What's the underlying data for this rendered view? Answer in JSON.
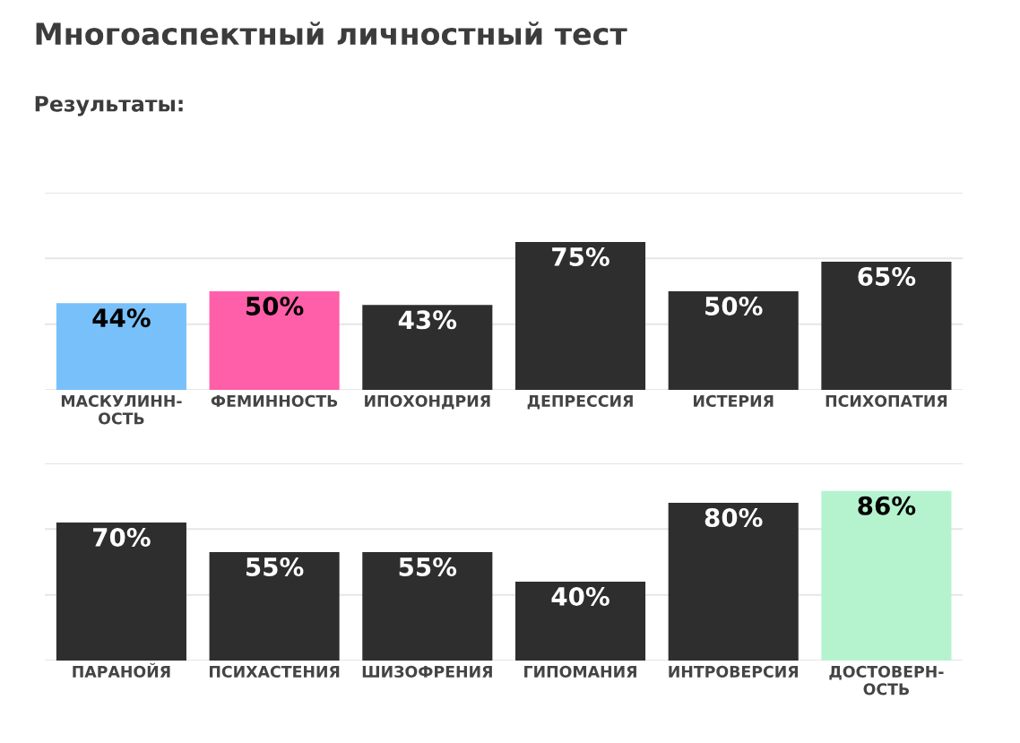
{
  "chart_data": [
    {
      "type": "bar",
      "title": "Многоаспектный личностный тест",
      "subtitle": "Результаты:",
      "categories": [
        "МАСКУЛИНН-\nОСТЬ",
        "ФЕМИННОСТЬ",
        "ИПОХОНДРИЯ",
        "ДЕПРЕССИЯ",
        "ИСТЕРИЯ",
        "ПСИХОПАТИЯ"
      ],
      "values": [
        44,
        50,
        43,
        75,
        50,
        65
      ],
      "value_labels": [
        "44%",
        "50%",
        "43%",
        "75%",
        "50%",
        "65%"
      ],
      "colors": [
        "#78c0fa",
        "#ff5fa8",
        "#2e2e2e",
        "#2e2e2e",
        "#2e2e2e",
        "#2e2e2e"
      ],
      "ylim": [
        0,
        100
      ],
      "yticks": [
        {
          "value": 0,
          "label": null
        },
        {
          "value": 33.3,
          "label": null
        },
        {
          "value": 66.7,
          "label": null
        },
        {
          "value": 100,
          "label": null
        }
      ],
      "tick_labels": "x",
      "grid": "y"
    },
    {
      "type": "bar",
      "categories": [
        "ПАРАНОЙЯ",
        "ПСИХАСТЕНИЯ",
        "ШИЗОФРЕНИЯ",
        "ГИПОМАНИЯ",
        "ИНТРОВЕРСИЯ",
        "ДОСТОВЕРН-\nОСТЬ"
      ],
      "values": [
        70,
        55,
        55,
        40,
        80,
        86
      ],
      "value_labels": [
        "70%",
        "55%",
        "55%",
        "40%",
        "80%",
        "86%"
      ],
      "colors": [
        "#2e2e2e",
        "#2e2e2e",
        "#2e2e2e",
        "#2e2e2e",
        "#2e2e2e",
        "#b5f3cf"
      ],
      "ylim": [
        0,
        100
      ],
      "yticks": [
        {
          "value": 0,
          "label": null
        },
        {
          "value": 33.3,
          "label": null
        },
        {
          "value": 66.7,
          "label": null
        },
        {
          "value": 100,
          "label": null
        }
      ],
      "tick_labels": "x",
      "grid": "y"
    }
  ]
}
